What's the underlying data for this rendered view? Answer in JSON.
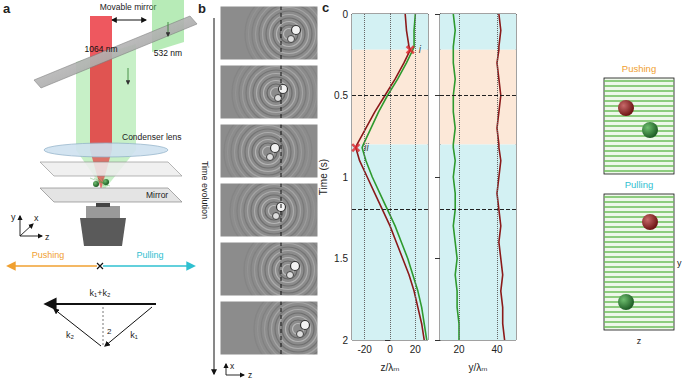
{
  "panels": {
    "a": {
      "label": "a",
      "movable_mirror": "Movable mirror",
      "beam_red": "1064 nm",
      "beam_green": "532 nm",
      "condenser": "Condenser lens",
      "mirror": "Mirror",
      "axes": [
        "x",
        "y",
        "z"
      ],
      "pushing": "Pushing",
      "pulling": "Pulling",
      "vectors": {
        "sum": "k₁+k₂",
        "k1": "k₁",
        "k2": "k₂",
        "angle": "2"
      }
    },
    "b": {
      "label": "b",
      "time_arrow": "Time evolution",
      "axes": [
        "x",
        "z"
      ]
    },
    "c": {
      "label": "c",
      "side": {
        "pushing": "Pushing",
        "pulling": "Pulling",
        "axes": [
          "y",
          "z"
        ]
      }
    }
  },
  "chart_data": [
    {
      "type": "line",
      "x_label": "Time (s)",
      "y_label": "z/λₘ",
      "x": [
        0,
        0.1,
        0.2,
        0.22,
        0.3,
        0.4,
        0.5,
        0.6,
        0.7,
        0.8,
        0.82,
        0.9,
        1.0,
        1.1,
        1.2,
        1.3,
        1.4,
        1.5,
        1.6,
        1.7,
        1.8,
        1.9,
        2.0
      ],
      "xlim": [
        0,
        2
      ],
      "xticks": [
        0,
        0.5,
        1,
        1.5,
        2
      ],
      "ylim": [
        -30,
        30
      ],
      "yticks": [
        -20,
        0,
        20
      ],
      "grid": true,
      "series": [
        {
          "color": "#8b1a1a",
          "values": [
            12,
            13,
            15,
            16,
            11,
            4,
            -4,
            -12,
            -19,
            -26,
            -27,
            -24,
            -18,
            -12,
            -6,
            0,
            5,
            10,
            15,
            19,
            22,
            25,
            27
          ]
        },
        {
          "color": "#2e9a2e",
          "values": [
            20,
            19,
            19,
            18,
            13,
            6,
            -2,
            -9,
            -15,
            -21,
            -22,
            -19,
            -14,
            -8,
            -2,
            4,
            9,
            14,
            18,
            22,
            25,
            27,
            29
          ]
        }
      ],
      "bands": [
        {
          "from": 0,
          "to": 0.22,
          "color": "#d3f1f3"
        },
        {
          "from": 0.22,
          "to": 0.8,
          "color": "#fce8d8"
        },
        {
          "from": 0.8,
          "to": 2,
          "color": "#d3f1f3"
        }
      ],
      "dashed_lines": [
        0.5,
        1.2
      ],
      "markers": [
        {
          "label": "i",
          "x": 0.22,
          "value": 16
        },
        {
          "label": "ii",
          "x": 0.82,
          "value": -27
        }
      ]
    },
    {
      "type": "line",
      "y_label": "y/λₘ",
      "x": [
        0,
        0.1,
        0.2,
        0.22,
        0.3,
        0.4,
        0.5,
        0.6,
        0.7,
        0.8,
        0.82,
        0.9,
        1.0,
        1.1,
        1.2,
        1.3,
        1.4,
        1.5,
        1.6,
        1.7,
        1.8,
        1.9,
        2.0
      ],
      "xlim": [
        0,
        2
      ],
      "xticks": [
        0,
        0.5,
        1,
        1.5,
        2
      ],
      "ylim": [
        10,
        50
      ],
      "yticks": [
        20,
        40
      ],
      "grid": true,
      "tick_labels": "y",
      "series": [
        {
          "color": "#8b1a1a",
          "values": [
            41,
            42,
            41,
            41,
            40,
            41,
            42,
            41,
            40,
            41,
            41,
            42,
            41,
            40,
            41,
            42,
            41,
            42,
            43,
            42,
            43,
            43,
            44
          ]
        },
        {
          "color": "#2e9a2e",
          "values": [
            17,
            18,
            17,
            17,
            17,
            18,
            17,
            17,
            18,
            17,
            17,
            18,
            17,
            18,
            18,
            17,
            18,
            19,
            18,
            19,
            19,
            20,
            20
          ]
        }
      ],
      "bands": [
        {
          "from": 0,
          "to": 0.22,
          "color": "#d3f1f3"
        },
        {
          "from": 0.22,
          "to": 0.8,
          "color": "#fce8d8"
        },
        {
          "from": 0.8,
          "to": 2,
          "color": "#d3f1f3"
        }
      ],
      "dashed_lines": [
        0.5,
        1.2
      ]
    }
  ]
}
